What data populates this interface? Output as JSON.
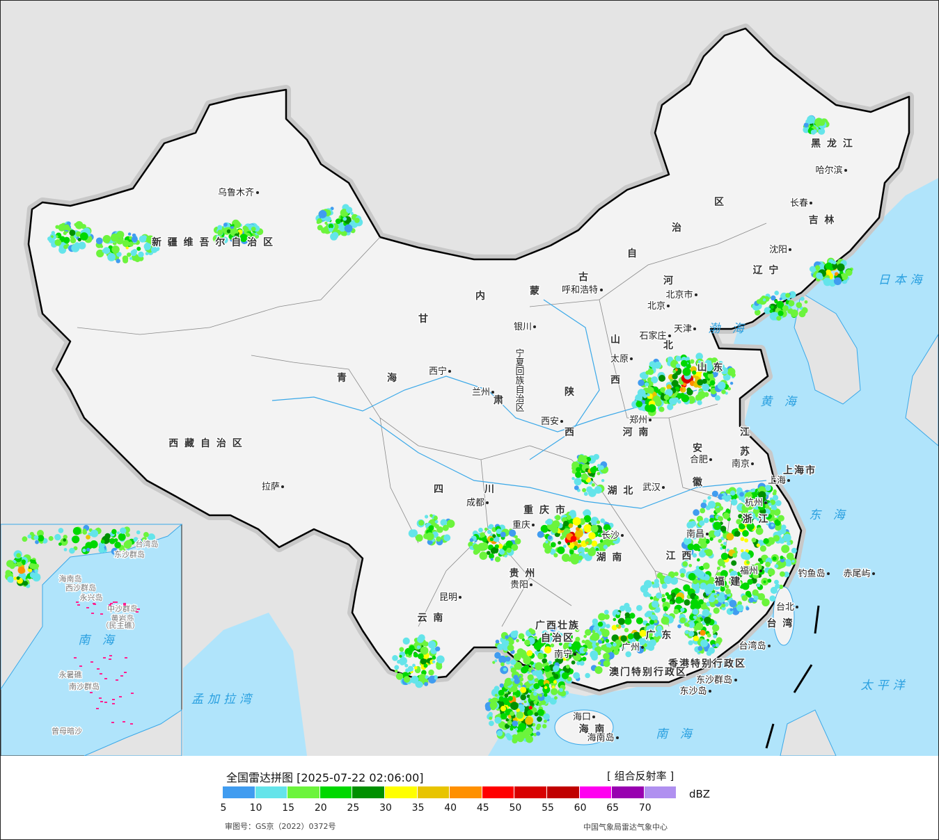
{
  "map": {
    "colors": {
      "land_china": "#f3f3f3",
      "land_other": "#e4e4e4",
      "sea": "#b0e4fb",
      "border": "#000000",
      "rivers": "#3aa8e8"
    },
    "labels": [
      {
        "text": "乌鲁木齐",
        "type": "city"
      },
      {
        "text": "新 疆 维 吾 尔 自 治 区",
        "type": "prov"
      },
      {
        "text": "黑 龙 江",
        "type": "prov"
      },
      {
        "text": "哈尔滨",
        "type": "city"
      },
      {
        "text": "长春",
        "type": "city"
      },
      {
        "text": "吉 林",
        "type": "prov"
      },
      {
        "text": "沈阳",
        "type": "city"
      },
      {
        "text": "辽 宁",
        "type": "prov"
      },
      {
        "text": "区",
        "type": "prov"
      },
      {
        "text": "治",
        "type": "prov"
      },
      {
        "text": "自",
        "type": "prov"
      },
      {
        "text": "古",
        "type": "prov"
      },
      {
        "text": "蒙",
        "type": "prov"
      },
      {
        "text": "内",
        "type": "prov"
      },
      {
        "text": "呼和浩特",
        "type": "city"
      },
      {
        "text": "河",
        "type": "prov"
      },
      {
        "text": "北",
        "type": "prov"
      },
      {
        "text": "北京市",
        "type": "city"
      },
      {
        "text": "北京",
        "type": "city"
      },
      {
        "text": "天津",
        "type": "city"
      },
      {
        "text": "石家庄",
        "type": "city"
      },
      {
        "text": "山",
        "type": "prov"
      },
      {
        "text": "太原",
        "type": "city"
      },
      {
        "text": "西",
        "type": "prov"
      },
      {
        "text": "山 东",
        "type": "prov"
      },
      {
        "text": "甘",
        "type": "prov"
      },
      {
        "text": "银川",
        "type": "city"
      },
      {
        "text": "青",
        "type": "prov"
      },
      {
        "text": "海",
        "type": "prov"
      },
      {
        "text": "西宁",
        "type": "city"
      },
      {
        "text": "兰州",
        "type": "city"
      },
      {
        "text": "肃",
        "type": "prov"
      },
      {
        "text": "陕",
        "type": "prov"
      },
      {
        "text": "西安",
        "type": "city"
      },
      {
        "text": "西",
        "type": "prov"
      },
      {
        "text": "郑州",
        "type": "city"
      },
      {
        "text": "河 南",
        "type": "prov"
      },
      {
        "text": "安",
        "type": "prov"
      },
      {
        "text": "合肥",
        "type": "city"
      },
      {
        "text": "徽",
        "type": "prov"
      },
      {
        "text": "江",
        "type": "prov"
      },
      {
        "text": "苏",
        "type": "prov"
      },
      {
        "text": "南京",
        "type": "city"
      },
      {
        "text": "上海市",
        "type": "prov"
      },
      {
        "text": "上海",
        "type": "city"
      },
      {
        "text": "西 藏 自 治 区",
        "type": "prov"
      },
      {
        "text": "拉萨",
        "type": "city"
      },
      {
        "text": "四",
        "type": "prov"
      },
      {
        "text": "川",
        "type": "prov"
      },
      {
        "text": "成都",
        "type": "city"
      },
      {
        "text": "重 庆 市",
        "type": "prov"
      },
      {
        "text": "重庆",
        "type": "city"
      },
      {
        "text": "湖 北",
        "type": "prov"
      },
      {
        "text": "武汉",
        "type": "city"
      },
      {
        "text": "杭州",
        "type": "city"
      },
      {
        "text": "浙 江",
        "type": "prov"
      },
      {
        "text": "长沙",
        "type": "city"
      },
      {
        "text": "湖 南",
        "type": "prov"
      },
      {
        "text": "南昌",
        "type": "city"
      },
      {
        "text": "江 西",
        "type": "prov"
      },
      {
        "text": "福 建",
        "type": "prov"
      },
      {
        "text": "福州",
        "type": "city"
      },
      {
        "text": "贵 州",
        "type": "prov"
      },
      {
        "text": "贵阳",
        "type": "city"
      },
      {
        "text": "昆明",
        "type": "city"
      },
      {
        "text": "云 南",
        "type": "prov"
      },
      {
        "text": "广西壮族",
        "type": "prov"
      },
      {
        "text": "自治区",
        "type": "prov"
      },
      {
        "text": "南宁",
        "type": "city"
      },
      {
        "text": "广 东",
        "type": "prov"
      },
      {
        "text": "广州",
        "type": "city"
      },
      {
        "text": "香港特别行政区",
        "type": "prov"
      },
      {
        "text": "澳门特别行政区",
        "type": "prov"
      },
      {
        "text": "海口",
        "type": "city"
      },
      {
        "text": "海 南",
        "type": "prov"
      },
      {
        "text": "海南岛",
        "type": "city"
      },
      {
        "text": "台北",
        "type": "city"
      },
      {
        "text": "台 湾",
        "type": "prov"
      },
      {
        "text": "台湾岛",
        "type": "city"
      },
      {
        "text": "东沙群岛",
        "type": "city"
      },
      {
        "text": "东沙岛",
        "type": "city"
      },
      {
        "text": "钓鱼岛",
        "type": "city"
      },
      {
        "text": "赤尾屿",
        "type": "city"
      },
      {
        "text": "宁夏回族自治区",
        "type": "city"
      },
      {
        "text": "渤 海",
        "type": "sea"
      },
      {
        "text": "黄 海",
        "type": "sea"
      },
      {
        "text": "东 海",
        "type": "sea"
      },
      {
        "text": "太平洋",
        "type": "sea"
      },
      {
        "text": "南 海",
        "type": "sea"
      },
      {
        "text": "日本海",
        "type": "sea"
      },
      {
        "text": "孟加拉湾",
        "type": "sea"
      }
    ],
    "inset_labels": [
      "南 海",
      "西沙群岛",
      "永兴岛",
      "中沙群岛",
      "黄岩岛",
      "（民主礁）",
      "南沙群岛",
      "永暑礁",
      "曾母暗沙",
      "东沙群岛",
      "台湾岛",
      "海南岛"
    ]
  },
  "legend": {
    "title": "全国雷达拼图 [2025-07-22 02:06:00]",
    "product": "[ 组合反射率 ]",
    "unit": "dBZ",
    "colors": [
      "#409cf0",
      "#64e4ea",
      "#6cf43c",
      "#00d800",
      "#009000",
      "#ffff00",
      "#e8c400",
      "#ff9000",
      "#ff0000",
      "#d80000",
      "#c00000",
      "#ff00f0",
      "#9800b0",
      "#b090f0"
    ],
    "ticks": [
      "5",
      "10",
      "15",
      "20",
      "25",
      "30",
      "35",
      "40",
      "45",
      "50",
      "55",
      "60",
      "65",
      "70"
    ],
    "approval": "审图号：GS京（2022）0372号",
    "source": "中国气象局雷达气象中心"
  }
}
